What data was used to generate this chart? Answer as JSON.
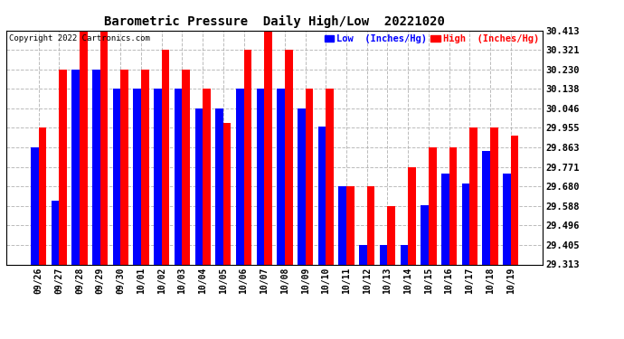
{
  "title": "Barometric Pressure  Daily High/Low  20221020",
  "copyright": "Copyright 2022 Cartronics.com",
  "legend_low": "Low  (Inches/Hg)",
  "legend_high": "High  (Inches/Hg)",
  "dates": [
    "09/26",
    "09/27",
    "09/28",
    "09/29",
    "09/30",
    "10/01",
    "10/02",
    "10/03",
    "10/04",
    "10/05",
    "10/06",
    "10/07",
    "10/08",
    "10/09",
    "10/10",
    "10/11",
    "10/12",
    "10/13",
    "10/14",
    "10/15",
    "10/16",
    "10/17",
    "10/18",
    "10/19"
  ],
  "low": [
    29.863,
    29.613,
    30.23,
    30.23,
    30.138,
    30.138,
    30.138,
    30.138,
    30.046,
    30.046,
    30.138,
    30.138,
    30.138,
    30.046,
    29.96,
    29.68,
    29.405,
    29.405,
    29.405,
    29.59,
    29.74,
    29.695,
    29.845,
    29.74
  ],
  "high": [
    29.955,
    30.23,
    30.413,
    30.413,
    30.23,
    30.23,
    30.321,
    30.23,
    30.138,
    29.98,
    30.321,
    30.413,
    30.321,
    30.138,
    30.138,
    29.68,
    29.68,
    29.588,
    29.771,
    29.863,
    29.863,
    29.955,
    29.955,
    29.92
  ],
  "ymin": 29.313,
  "ymax": 30.413,
  "yticks": [
    29.313,
    29.405,
    29.496,
    29.588,
    29.68,
    29.771,
    29.863,
    29.955,
    30.046,
    30.138,
    30.23,
    30.321,
    30.413
  ],
  "bar_width": 0.38,
  "low_color": "#0000ff",
  "high_color": "#ff0000",
  "bg_color": "#ffffff",
  "grid_color": "#aaaaaa",
  "title_color": "#000000",
  "copyright_color": "#000000",
  "legend_low_color": "#0000ff",
  "legend_high_color": "#ff0000"
}
